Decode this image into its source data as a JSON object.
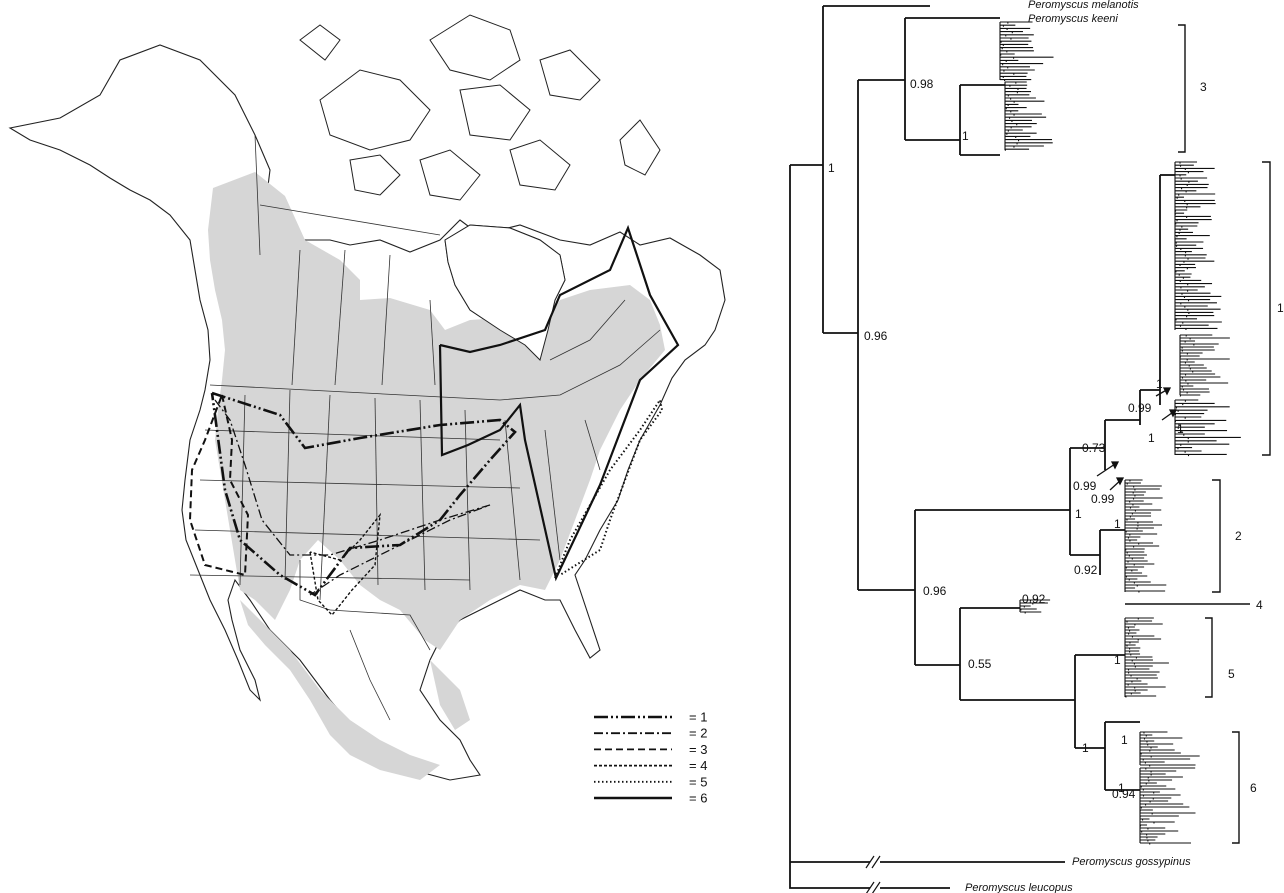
{
  "colors": {
    "range_fill": "#d6d6d6",
    "ink": "#111111",
    "paper": "#ffffff"
  },
  "legend": [
    {
      "label": "= 1",
      "dash": "14 3 2 3 2 3"
    },
    {
      "label": "= 2",
      "dash": "9 3 2 3"
    },
    {
      "label": "= 3",
      "dash": "7 4"
    },
    {
      "label": "= 4",
      "dash": "3 2"
    },
    {
      "label": "= 5",
      "dash": "1.5 2.5"
    },
    {
      "label": "= 6",
      "dash": ""
    }
  ],
  "tree": {
    "taxa": {
      "melanotis": "Peromyscus melanotis",
      "keeni": "Peromyscus keeni",
      "gossypinus": "Peromyscus gossypinus",
      "leucopus": "Peromyscus leucopus"
    },
    "supports": {
      "root": "1",
      "keeni_clade": "0.98",
      "clade3": "1",
      "main": "0.96",
      "lower": "0.96",
      "c0": "0.99",
      "c1": "0.73",
      "c2": "0.99",
      "c3": "0.99",
      "c4": "1",
      "c5": "1",
      "c6": "1",
      "clade2_outer": "1",
      "clade2_inner": "0.92",
      "clade2_top": "1",
      "clade4": "0.92",
      "c456": "0.55",
      "c56": "1",
      "clade5": "1",
      "clade6": "0.94",
      "clade6_top": "1",
      "clade6_mid": "1"
    },
    "clade_labels": {
      "c3": "3",
      "c1": "1",
      "c2": "2",
      "c4": "4",
      "c5": "5",
      "c6": "6"
    }
  }
}
